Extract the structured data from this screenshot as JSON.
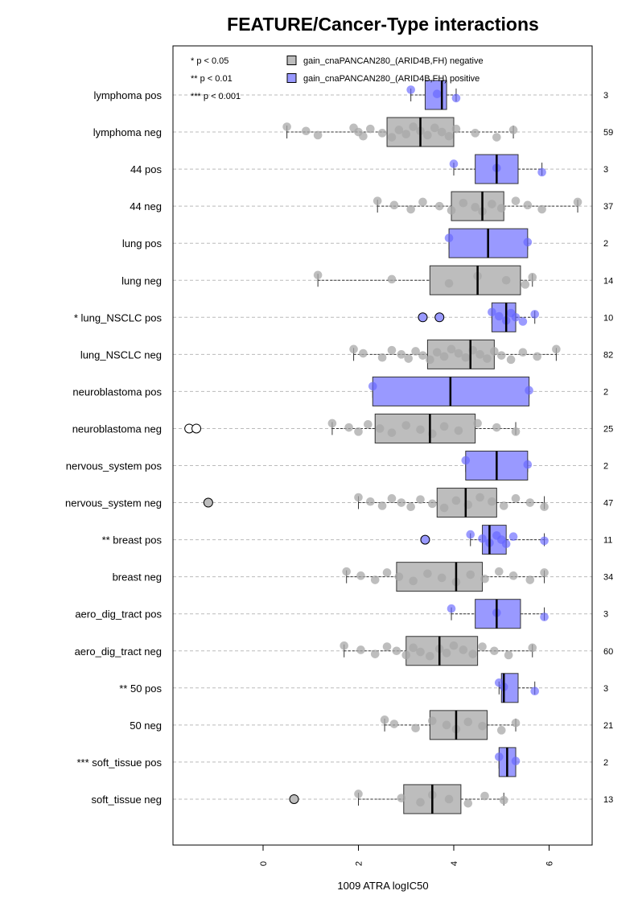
{
  "chart_data": {
    "type": "boxplot",
    "orientation": "horizontal",
    "title": "FEATURE/Cancer-Type interactions",
    "xlabel": "1009 ATRA logIC50",
    "x_ticks": [
      "0",
      "2",
      "4",
      "6"
    ],
    "xlim": [
      -1.85,
      6.9
    ],
    "grid": "horizontal dashed",
    "significance_legend": [
      "* p < 0.05",
      "** p < 0.01",
      "*** p < 0.001"
    ],
    "legend": {
      "position": "top",
      "entries": [
        {
          "label": "gain_cnaPANCAN280_(ARID4B,FH) negative",
          "color": "#bdbdbd"
        },
        {
          "label": "gain_cnaPANCAN280_(ARID4B,FH) positive",
          "color": "#9999ff"
        }
      ]
    },
    "colors": {
      "negative": "#bdbdbd",
      "positive": "#9999ff",
      "neg_point": "#a8a8a8",
      "pos_point": "#6666ff",
      "grid": "#bbbbbb"
    },
    "rows": [
      {
        "label": "lymphoma pos",
        "n": "3",
        "group": "pos",
        "box": [
          3.4,
          3.75,
          3.85
        ],
        "whiskers": [
          3.1,
          4.05
        ],
        "points": [
          3.1,
          3.65,
          4.05
        ],
        "outliers": []
      },
      {
        "label": "lymphoma neg",
        "n": "59",
        "group": "neg",
        "box": [
          2.6,
          3.3,
          4.0
        ],
        "whiskers": [
          0.5,
          5.25
        ],
        "points": [
          0.5,
          0.9,
          1.15,
          1.9,
          2.0,
          2.1,
          2.25,
          2.5,
          2.7,
          2.85,
          3.0,
          3.15,
          3.3,
          3.45,
          3.6,
          3.75,
          3.9,
          4.05,
          4.45,
          4.9,
          5.25
        ],
        "outliers": []
      },
      {
        "label": "44 pos",
        "n": "3",
        "group": "pos",
        "box": [
          4.45,
          4.9,
          5.35
        ],
        "whiskers": [
          4.0,
          5.85
        ],
        "points": [
          4.0,
          4.9,
          5.85
        ],
        "outliers": []
      },
      {
        "label": "44 neg",
        "n": "37",
        "group": "neg",
        "box": [
          3.95,
          4.6,
          5.05
        ],
        "whiskers": [
          2.4,
          6.6
        ],
        "points": [
          2.4,
          2.75,
          3.1,
          3.35,
          3.7,
          3.95,
          4.2,
          4.45,
          4.6,
          4.8,
          5.0,
          5.3,
          5.55,
          5.85,
          6.6
        ],
        "outliers": []
      },
      {
        "label": "lung pos",
        "n": "2",
        "group": "pos",
        "box": [
          3.9,
          4.72,
          5.55
        ],
        "whiskers": [
          3.9,
          5.55
        ],
        "points": [
          3.9,
          5.55
        ],
        "outliers": []
      },
      {
        "label": "lung neg",
        "n": "14",
        "group": "neg",
        "box": [
          3.5,
          4.5,
          5.4
        ],
        "whiskers": [
          1.15,
          5.65
        ],
        "points": [
          1.15,
          2.7,
          3.9,
          4.5,
          5.1,
          5.5,
          5.65
        ],
        "outliers": []
      },
      {
        "label": "* lung_NSCLC pos",
        "n": "10",
        "group": "pos",
        "box": [
          4.8,
          5.1,
          5.3
        ],
        "whiskers": [
          4.8,
          5.7
        ],
        "points": [
          4.8,
          4.95,
          5.1,
          5.2,
          5.3,
          5.45,
          5.7
        ],
        "outliers": [
          3.35,
          3.7
        ]
      },
      {
        "label": "lung_NSCLC neg",
        "n": "82",
        "group": "neg",
        "box": [
          3.45,
          4.35,
          4.85
        ],
        "whiskers": [
          1.9,
          6.15
        ],
        "points": [
          1.9,
          2.1,
          2.5,
          2.7,
          2.9,
          3.05,
          3.2,
          3.35,
          3.5,
          3.65,
          3.8,
          3.95,
          4.1,
          4.25,
          4.4,
          4.55,
          4.7,
          4.85,
          5.0,
          5.2,
          5.45,
          5.75,
          6.15
        ],
        "outliers": []
      },
      {
        "label": "neuroblastoma pos",
        "n": "2",
        "group": "pos",
        "box": [
          2.3,
          3.93,
          5.58
        ],
        "whiskers": [
          2.3,
          5.58
        ],
        "points": [
          2.3,
          5.58
        ],
        "outliers": []
      },
      {
        "label": "neuroblastoma neg",
        "n": "25",
        "group": "neg",
        "box": [
          2.35,
          3.5,
          4.45
        ],
        "whiskers": [
          1.45,
          5.3
        ],
        "points": [
          1.45,
          1.8,
          2.0,
          2.2,
          2.45,
          2.7,
          3.0,
          3.3,
          3.55,
          3.8,
          4.1,
          4.5,
          4.9,
          5.3
        ],
        "outliers": [
          -1.55,
          -1.4
        ]
      },
      {
        "label": "nervous_system pos",
        "n": "2",
        "group": "pos",
        "box": [
          4.25,
          4.9,
          5.55
        ],
        "whiskers": [
          4.25,
          5.55
        ],
        "points": [
          4.25,
          5.55
        ],
        "outliers": []
      },
      {
        "label": "nervous_system neg",
        "n": "47",
        "group": "neg",
        "box": [
          3.65,
          4.25,
          4.9
        ],
        "whiskers": [
          2.0,
          5.9
        ],
        "points": [
          2.0,
          2.25,
          2.5,
          2.7,
          2.9,
          3.1,
          3.3,
          3.55,
          3.8,
          4.05,
          4.3,
          4.55,
          4.8,
          5.05,
          5.3,
          5.6,
          5.9
        ],
        "outliers": [
          -1.15
        ]
      },
      {
        "label": "** breast pos",
        "n": "11",
        "group": "pos",
        "box": [
          4.6,
          4.75,
          5.1
        ],
        "whiskers": [
          4.35,
          5.9
        ],
        "points": [
          4.35,
          4.6,
          4.75,
          4.9,
          5.0,
          5.1,
          5.25,
          5.9
        ],
        "outliers": [
          3.4
        ]
      },
      {
        "label": "breast neg",
        "n": "34",
        "group": "neg",
        "box": [
          2.8,
          4.05,
          4.6
        ],
        "whiskers": [
          1.75,
          5.9
        ],
        "points": [
          1.75,
          2.05,
          2.35,
          2.6,
          2.85,
          3.15,
          3.45,
          3.75,
          4.05,
          4.35,
          4.65,
          4.95,
          5.25,
          5.6,
          5.9
        ],
        "outliers": []
      },
      {
        "label": "aero_dig_tract pos",
        "n": "3",
        "group": "pos",
        "box": [
          4.45,
          4.9,
          5.4
        ],
        "whiskers": [
          3.95,
          5.9
        ],
        "points": [
          3.95,
          4.9,
          5.9
        ],
        "outliers": []
      },
      {
        "label": "aero_dig_tract neg",
        "n": "60",
        "group": "neg",
        "box": [
          3.0,
          3.7,
          4.5
        ],
        "whiskers": [
          1.7,
          5.65
        ],
        "points": [
          1.7,
          2.05,
          2.35,
          2.6,
          2.8,
          3.0,
          3.15,
          3.3,
          3.5,
          3.7,
          3.85,
          4.0,
          4.2,
          4.4,
          4.6,
          4.85,
          5.15,
          5.65
        ],
        "outliers": []
      },
      {
        "label": "** 50 pos",
        "n": "3",
        "group": "pos",
        "box": [
          5.0,
          5.05,
          5.35
        ],
        "whiskers": [
          4.95,
          5.7
        ],
        "points": [
          4.95,
          5.05,
          5.7
        ],
        "outliers": []
      },
      {
        "label": "50 neg",
        "n": "21",
        "group": "neg",
        "box": [
          3.5,
          4.05,
          4.7
        ],
        "whiskers": [
          2.55,
          5.3
        ],
        "points": [
          2.55,
          2.75,
          3.2,
          3.55,
          3.85,
          4.05,
          4.3,
          4.6,
          5.0,
          5.3
        ],
        "outliers": []
      },
      {
        "label": "*** soft_tissue pos",
        "n": "2",
        "group": "pos",
        "box": [
          4.95,
          5.12,
          5.3
        ],
        "whiskers": [
          4.95,
          5.3
        ],
        "points": [
          4.95,
          5.3
        ],
        "outliers": []
      },
      {
        "label": "soft_tissue neg",
        "n": "13",
        "group": "neg",
        "box": [
          2.95,
          3.55,
          4.15
        ],
        "whiskers": [
          2.0,
          5.05
        ],
        "points": [
          2.0,
          2.9,
          3.3,
          3.55,
          3.9,
          4.3,
          4.65,
          5.05
        ],
        "outliers": [
          0.65
        ]
      }
    ]
  }
}
